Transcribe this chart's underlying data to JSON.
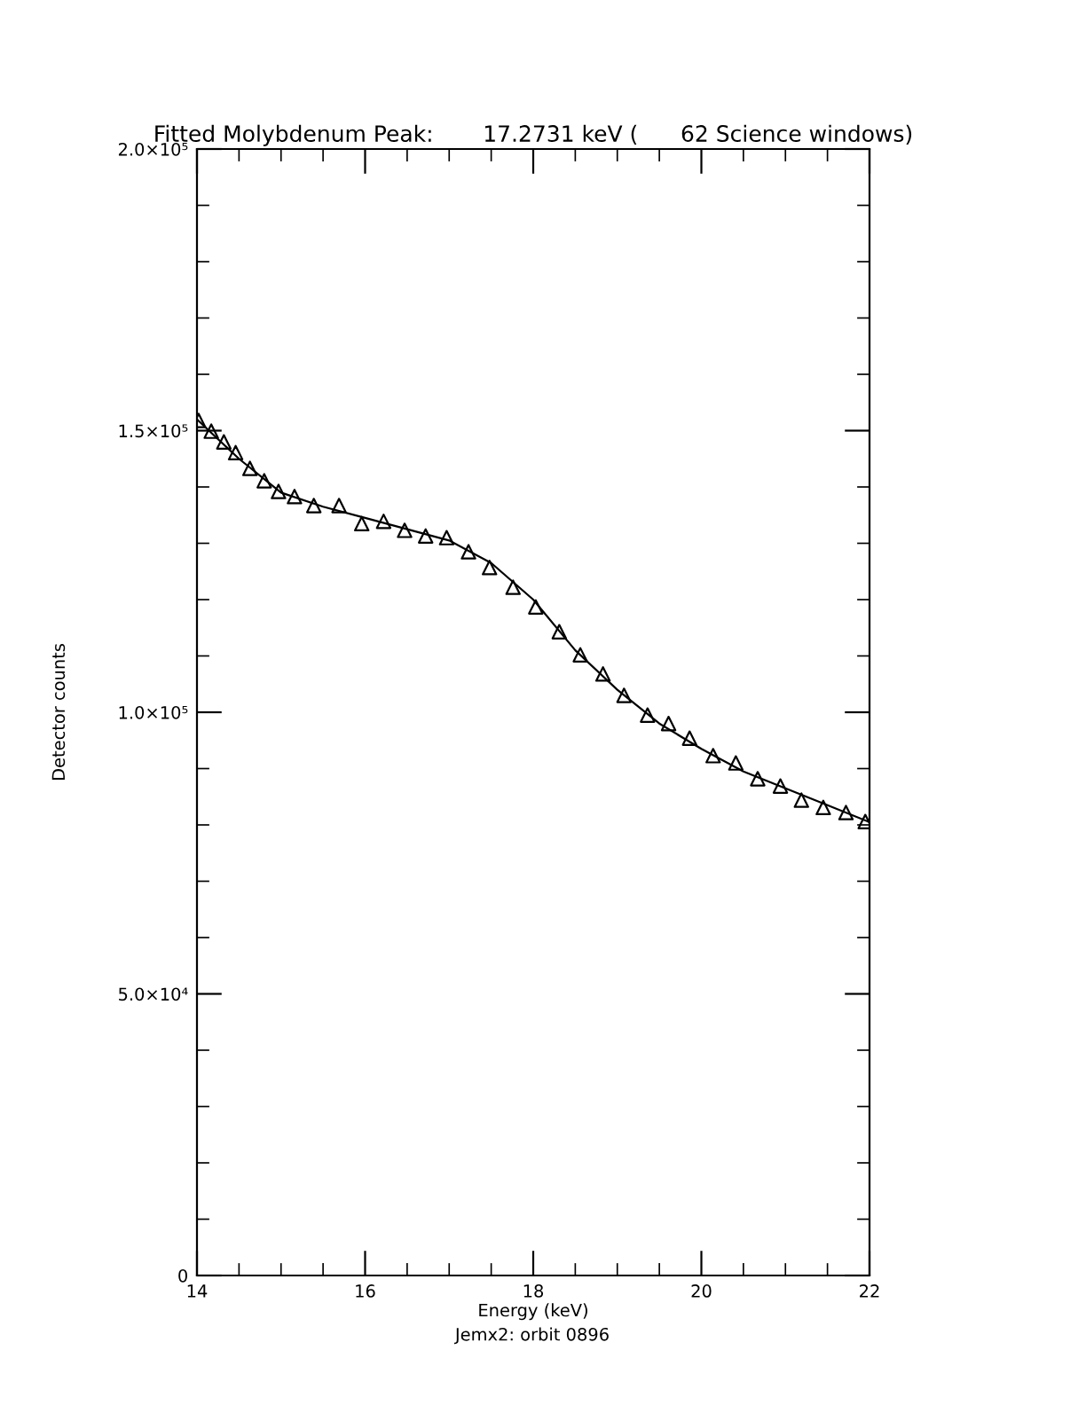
{
  "chart_data": {
    "type": "scatter",
    "title": "Fitted Molybdenum Peak:       17.2731 keV (      62 Science windows)",
    "xlabel": "Energy (keV)",
    "ylabel": "Detector counts",
    "annotations": [
      "Jemx2: orbit 0896"
    ],
    "xlim": [
      14,
      22
    ],
    "xticks": [
      14,
      16,
      18,
      20,
      22
    ],
    "ylim": [
      0,
      200000
    ],
    "yticks": [
      {
        "value": 0,
        "label": "0"
      },
      {
        "value": 50000,
        "label": "5.0×10⁴"
      },
      {
        "value": 100000,
        "label": "1.0×10⁵"
      },
      {
        "value": 150000,
        "label": "1.5×10⁵"
      },
      {
        "value": 200000,
        "label": "2.0×10⁵"
      }
    ],
    "grid": false,
    "legend": false,
    "series": [
      {
        "color": "#000000",
        "marker": "triangle",
        "x": [
          14.02,
          14.17,
          14.32,
          14.46,
          14.63,
          14.8,
          14.97,
          15.16,
          15.39,
          15.69,
          15.96,
          16.22,
          16.47,
          16.72,
          16.97,
          17.23,
          17.48,
          17.76,
          18.03,
          18.31,
          18.56,
          18.83,
          19.08,
          19.36,
          19.61,
          19.86,
          20.14,
          20.41,
          20.67,
          20.94,
          21.19,
          21.45,
          21.72,
          21.95
        ],
        "values": [
          151800,
          149900,
          148000,
          146100,
          143300,
          141100,
          139200,
          138300,
          136700,
          136700,
          133500,
          133900,
          132300,
          131300,
          131000,
          128500,
          125700,
          122200,
          118700,
          114300,
          110200,
          106800,
          103000,
          99500,
          98000,
          95400,
          92300,
          91000,
          88200,
          86900,
          84400,
          83100,
          82200,
          80600
        ]
      },
      {
        "type": "line",
        "color": "#000000",
        "marker": "none",
        "line_style": "solid",
        "x": [
          14,
          14.5,
          15,
          15.5,
          16,
          16.5,
          17,
          17.5,
          18,
          18.5,
          19,
          19.5,
          20,
          20.5,
          21,
          21.5,
          22
        ],
        "values": [
          152000,
          145000,
          139000,
          136500,
          134500,
          132500,
          130500,
          126500,
          120000,
          111000,
          104000,
          98000,
          93500,
          89500,
          86500,
          83500,
          80500
        ]
      }
    ]
  }
}
